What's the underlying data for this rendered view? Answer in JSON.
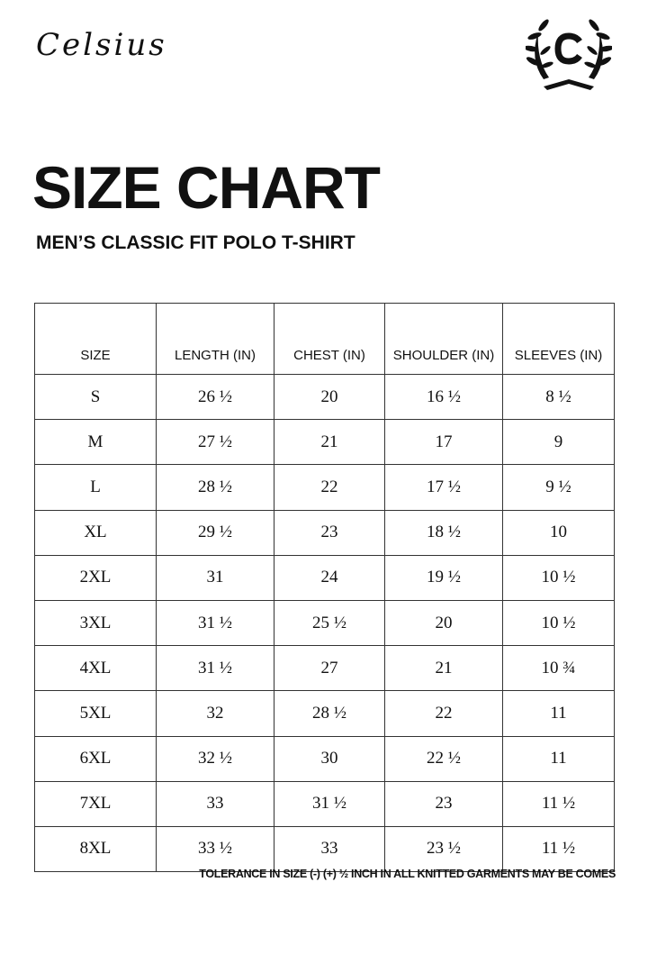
{
  "brand": {
    "name": "Celsius",
    "logo_letter": "C"
  },
  "title": "SIZE CHART",
  "subtitle": "MEN’S CLASSIC FIT POLO T-SHIRT",
  "table": {
    "headers": [
      "SIZE",
      "LENGTH (IN)",
      "CHEST (IN)",
      "SHOULDER (IN)",
      "SLEEVES (IN)"
    ],
    "rows": [
      [
        "S",
        "26 ½",
        "20",
        "16 ½",
        "8 ½"
      ],
      [
        "M",
        "27 ½",
        "21",
        "17",
        "9"
      ],
      [
        "L",
        "28 ½",
        "22",
        "17 ½",
        "9 ½"
      ],
      [
        "XL",
        "29 ½",
        "23",
        "18 ½",
        "10"
      ],
      [
        "2XL",
        "31",
        "24",
        "19 ½",
        "10 ½"
      ],
      [
        "3XL",
        "31 ½",
        "25 ½",
        "20",
        "10 ½"
      ],
      [
        "4XL",
        "31 ½",
        "27",
        "21",
        "10 ¾"
      ],
      [
        "5XL",
        "32",
        "28 ½",
        "22",
        "11"
      ],
      [
        "6XL",
        "32 ½",
        "30",
        "22 ½",
        "11"
      ],
      [
        "7XL",
        "33",
        "31 ½",
        "23",
        "11 ½"
      ],
      [
        "8XL",
        "33 ½",
        "33",
        "23 ½",
        "11 ½"
      ]
    ]
  },
  "note": "TOLERANCE IN SIZE (-) (+) ½ INCH IN ALL KNITTED GARMENTS MAY BE COMES"
}
